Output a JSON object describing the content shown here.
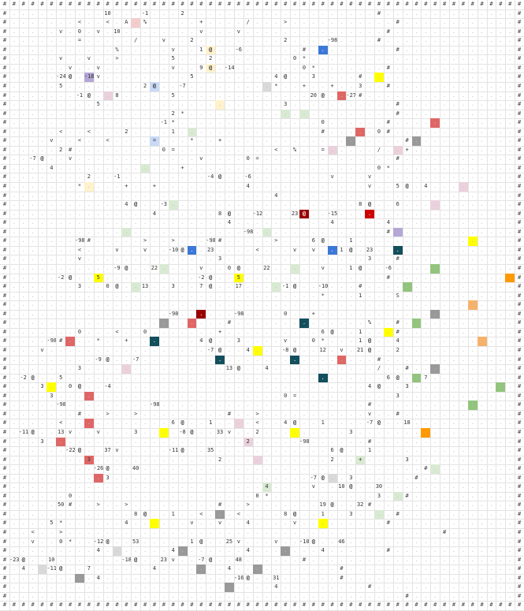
{
  "board": {
    "rows": [
      "############################################",
      "#..........10...-1...2....................#",
      "#.......<..<.A.%.....+..../...>...........#",
      "#.....v.0.v.10........v...v...............#",
      "#.......=...../..v..2.........2....-98....#",
      "#...........%.....v..1@..-6......#.........#",
      "#.....v..v..>.....5...2........0*...........",
      "#......v..v.......v..9@.-14.......0*.......#",
      "#.....-24@.-18v.........5........4@..3....#",
      "#.....5........2@..-7.........*..+..+..3..#",
      "#.......-1@..8.....5..............20@..-27#",
      "#.........5...................3...........#",
      "#.................2*......................#",
      "#................-1*...............0......#",
      "#.....<..<...2....1...............#.....0#",
      "#....v..<..<....=...*..+...................#",
      "#.....2#.........0=..........<.%..=...../..+",
      "#..-7@..v.............v....0=..............#",
      "#....4.............+....................0*.",
      "#........2..-1.........-4@..-6........v...v",
      "#.......*....+..+.........4............v..5@.4",
      "#............................4...............",
      "#............4@..-3....................8@..6",
      "#...............4......8@..-12...23@..-15...",
      "#.......................4..........4.....4..",
      "#.........................-98..............#",
      "#.......-98#.....>..>...-98#.....>...6@..1.",
      "#.......<...v..v..-10@..23....<...v.v..1@.23",
      "#.......v..............3...............3..#",
      "#...........-9@..22....v..0@..22.....v..1@..-6",
      "#.....-2@..5..........-2@..5...............#",
      "#.......3..0@..13..3..7@..17....-1@..-10...#",
      "#.................................*...1...S",
      "#..........................................",
      "#.................-98......-98....0..+....",
      "#.......................#..............%..#",
      "#.......0...<..0.......+..........6@..1...#",
      "#....-98#...*..+.......4@..3....v..0*...1@..4",
      "#...v.................-7@..4...-8@..12.v.21@..2",
      "#.........-9@..-7.........................#",
      "#.......3...............13@..4.........../..#",
      "#.-2@..5..................................6@..7",
      "#...3..0@..-4...........................4@..3.",
      "#....3........................0=..........3..",
      "#.....-98.........-98......................#",
      "#.......#..>..>.........#..>...........v..#",
      "#.....<...........6@..1....<..4@..1....-7@..18",
      "#.-11@..13v..v...3....-8@..33v..2.........3.",
      "#...3.....................2.....-98......#",
      "#......-22@..37v.....-11@..35............6@..1",
      "#........3.............2...........2..+....3",
      "#.........-26@..40..............................#",
      "#..........3.....................-7@..3......#",
      "#...........................4....v..10@..30",
      "#......0...................0*...........3..#",
      "#.....50#..>..>.........#..>.......19@..32#",
      "#.............8@..1..<...<....8@..1..3....#",
      "#....5*......4......v..v..4....v.........#",
      "#..<..>........................................#",
      "#..v..0*..-12@..53.....1@..25v...v..-10@..46",
      "#.........4.......4.......4.......4......#",
      "#-23@..10.......-18@..23v..-7@..48......#",
      "#.4..-11@..7......4.......4...........#",
      "#.........4..............-16@..31......#",
      "#............................4.........#",
      "#..........................................#",
      "############################################"
    ],
    "highlights": [
      {
        "r": 2,
        "c": 14,
        "color": "#f4cccc"
      },
      {
        "r": 5,
        "c": 22,
        "color": "#fff2cc"
      },
      {
        "r": 5,
        "c": 34,
        "color": "#3c78d8"
      },
      {
        "r": 7,
        "c": 22,
        "color": "#fff2cc"
      },
      {
        "r": 8,
        "c": 9,
        "color": "#b4a7d6"
      },
      {
        "r": 8,
        "c": 40,
        "color": "#ffff00"
      },
      {
        "r": 9,
        "c": 16,
        "color": "#c9daf8"
      },
      {
        "r": 9,
        "c": 28,
        "color": "#d9d9d9"
      },
      {
        "r": 10,
        "c": 11,
        "color": "#ead1dc"
      },
      {
        "r": 10,
        "c": 36,
        "color": "#e06666"
      },
      {
        "r": 11,
        "c": 23,
        "color": "#fff2cc"
      },
      {
        "r": 12,
        "c": 30,
        "color": "#d9ead3"
      },
      {
        "r": 12,
        "c": 32,
        "color": "#d9ead3"
      },
      {
        "r": 14,
        "c": 20,
        "color": "#d9ead3"
      },
      {
        "r": 14,
        "c": 38,
        "color": "#e06666"
      },
      {
        "r": 13,
        "c": 46,
        "color": "#e06666"
      },
      {
        "r": 15,
        "c": 16,
        "color": "#c9daf8"
      },
      {
        "r": 15,
        "c": 37,
        "color": "#999999"
      },
      {
        "r": 15,
        "c": 44,
        "color": "#999999"
      },
      {
        "r": 16,
        "c": 35,
        "color": "#ead1dc"
      },
      {
        "r": 16,
        "c": 42,
        "color": "#ead1dc"
      },
      {
        "r": 18,
        "c": 15,
        "color": "#d9ead3"
      },
      {
        "r": 20,
        "c": 9,
        "color": "#fff2cc"
      },
      {
        "r": 20,
        "c": 49,
        "color": "#ead1dc"
      },
      {
        "r": 22,
        "c": 18,
        "color": "#d9ead3"
      },
      {
        "r": 22,
        "c": 46,
        "color": "#ead1dc"
      },
      {
        "r": 23,
        "c": 32,
        "color": "#990000"
      },
      {
        "r": 23,
        "c": 39,
        "color": "#cc0000"
      },
      {
        "r": 25,
        "c": 13,
        "color": "#d9ead3"
      },
      {
        "r": 25,
        "c": 28,
        "color": "#d9ead3"
      },
      {
        "r": 25,
        "c": 42,
        "color": "#b4a7d6"
      },
      {
        "r": 26,
        "c": 50,
        "color": "#ffff00"
      },
      {
        "r": 27,
        "c": 20,
        "color": "#3c78d8"
      },
      {
        "r": 27,
        "c": 35,
        "color": "#3c78d8"
      },
      {
        "r": 27,
        "c": 42,
        "color": "#134f5c"
      },
      {
        "r": 29,
        "c": 17,
        "color": "#d9ead3"
      },
      {
        "r": 29,
        "c": 31,
        "color": "#d9ead3"
      },
      {
        "r": 29,
        "c": 46,
        "color": "#93c47d"
      },
      {
        "r": 30,
        "c": 10,
        "color": "#ffff00"
      },
      {
        "r": 30,
        "c": 25,
        "color": "#ffff00"
      },
      {
        "r": 30,
        "c": 54,
        "color": "#ff9900"
      },
      {
        "r": 31,
        "c": 14,
        "color": "#d9ead3"
      },
      {
        "r": 31,
        "c": 29,
        "color": "#d9ead3"
      },
      {
        "r": 31,
        "c": 43,
        "color": "#93c47d"
      },
      {
        "r": 33,
        "c": 50,
        "color": "#f6b26b"
      },
      {
        "r": 34,
        "c": 46,
        "color": "#999999"
      },
      {
        "r": 34,
        "c": 21,
        "color": "#990000"
      },
      {
        "r": 35,
        "c": 32,
        "color": "#134f5c"
      },
      {
        "r": 35,
        "c": 44,
        "color": "#93c47d"
      },
      {
        "r": 35,
        "c": 17,
        "color": "#999999"
      },
      {
        "r": 35,
        "c": 20,
        "color": "#e06666"
      },
      {
        "r": 36,
        "c": 41,
        "color": "#ffff00"
      },
      {
        "r": 37,
        "c": 7,
        "color": "#e06666"
      },
      {
        "r": 37,
        "c": 16,
        "color": "#134f5c"
      },
      {
        "r": 37,
        "c": 51,
        "color": "#f6b26b"
      },
      {
        "r": 38,
        "c": 27,
        "color": "#ffff00"
      },
      {
        "r": 39,
        "c": 23,
        "color": "#134f5c"
      },
      {
        "r": 39,
        "c": 31,
        "color": "#134f5c"
      },
      {
        "r": 39,
        "c": 36,
        "color": "#e06666"
      },
      {
        "r": 40,
        "c": 13,
        "color": "#ead1dc"
      },
      {
        "r": 40,
        "c": 46,
        "color": "#999999"
      },
      {
        "r": 41,
        "c": 34,
        "color": "#134f5c"
      },
      {
        "r": 41,
        "c": 44,
        "color": "#93c47d"
      },
      {
        "r": 42,
        "c": 5,
        "color": "#ffff00"
      },
      {
        "r": 42,
        "c": 53,
        "color": "#93c47d"
      },
      {
        "r": 43,
        "c": 9,
        "color": "#e06666"
      },
      {
        "r": 44,
        "c": 50,
        "color": "#93c47d"
      },
      {
        "r": 46,
        "c": 9,
        "color": "#e06666"
      },
      {
        "r": 46,
        "c": 25,
        "color": "#ead1dc"
      },
      {
        "r": 47,
        "c": 17,
        "color": "#ffff00"
      },
      {
        "r": 47,
        "c": 31,
        "color": "#ffff00"
      },
      {
        "r": 47,
        "c": 45,
        "color": "#ff9900"
      },
      {
        "r": 48,
        "c": 6,
        "color": "#e06666"
      },
      {
        "r": 48,
        "c": 26,
        "color": "#ead1dc"
      },
      {
        "r": 50,
        "c": 9,
        "color": "#e06666"
      },
      {
        "r": 50,
        "c": 27,
        "color": "#ead1dc"
      },
      {
        "r": 50,
        "c": 38,
        "color": "#d9ead3"
      },
      {
        "r": 51,
        "c": 46,
        "color": "#d9ead3"
      },
      {
        "r": 52,
        "c": 10,
        "color": "#e06666"
      },
      {
        "r": 52,
        "c": 35,
        "color": "#d9d9d9"
      },
      {
        "r": 53,
        "c": 28,
        "color": "#d9ead3"
      },
      {
        "r": 54,
        "c": 42,
        "color": "#d9ead3"
      },
      {
        "r": 56,
        "c": 23,
        "color": "#999999"
      },
      {
        "r": 56,
        "c": 40,
        "color": "#d9ead3"
      },
      {
        "r": 57,
        "c": 16,
        "color": "#ffff00"
      },
      {
        "r": 57,
        "c": 34,
        "color": "#ffff00"
      },
      {
        "r": 60,
        "c": 12,
        "color": "#d9d9d9"
      },
      {
        "r": 60,
        "c": 19,
        "color": "#999999"
      },
      {
        "r": 60,
        "c": 30,
        "color": "#999999"
      },
      {
        "r": 62,
        "c": 4,
        "color": "#d9d9d9"
      },
      {
        "r": 62,
        "c": 21,
        "color": "#999999"
      },
      {
        "r": 62,
        "c": 27,
        "color": "#999999"
      },
      {
        "r": 63,
        "c": 8,
        "color": "#999999"
      },
      {
        "r": 64,
        "c": 24,
        "color": "#999999"
      }
    ]
  }
}
